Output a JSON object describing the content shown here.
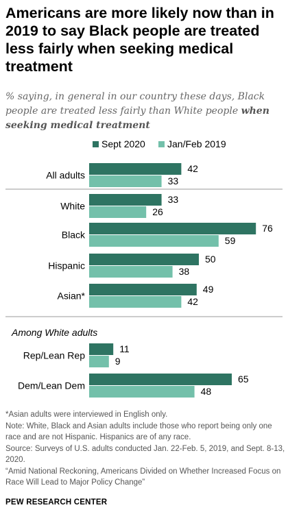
{
  "title": "Americans are more likely now than in 2019 to say Black people are treated less fairly when seeking medical treatment",
  "subtitle_part1": "% saying, in general in our country these days, Black people are treated less fairly than White people ",
  "subtitle_part2": "when seeking medical treatment",
  "colors": {
    "sept2020": "#2e7462",
    "janfeb2019": "#73c0aa"
  },
  "chart_data": {
    "type": "bar",
    "orientation": "horizontal",
    "series": [
      {
        "name": "Sept 2020",
        "color": "#2e7462"
      },
      {
        "name": "Jan/Feb 2019",
        "color": "#73c0aa"
      }
    ],
    "rows": [
      {
        "label": "All adults",
        "values": [
          42,
          33
        ]
      },
      {
        "label": "White",
        "values": [
          33,
          26
        ]
      },
      {
        "label": "Black",
        "values": [
          76,
          59
        ]
      },
      {
        "label": "Hispanic",
        "values": [
          50,
          38
        ]
      },
      {
        "label": "Asian*",
        "values": [
          49,
          42
        ]
      },
      {
        "label": "Rep/Lean Rep",
        "values": [
          11,
          9
        ]
      },
      {
        "label": "Dem/Lean Dem",
        "values": [
          65,
          48
        ]
      }
    ],
    "group_label": "Among White adults",
    "legend_position": "top",
    "xlim": [
      0,
      100
    ]
  },
  "notes": [
    "*Asian adults were interviewed in English only.",
    "Note: White, Black and Asian adults include those who report being only one race and are not Hispanic. Hispanics are of any race.",
    "Source: Surveys of U.S. adults conducted Jan. 22-Feb. 5, 2019, and Sept. 8-13, 2020.",
    "“Amid National Reckoning, Americans Divided on Whether Increased Focus on Race Will Lead to Major Policy Change”"
  ],
  "source_label": "PEW RESEARCH CENTER"
}
